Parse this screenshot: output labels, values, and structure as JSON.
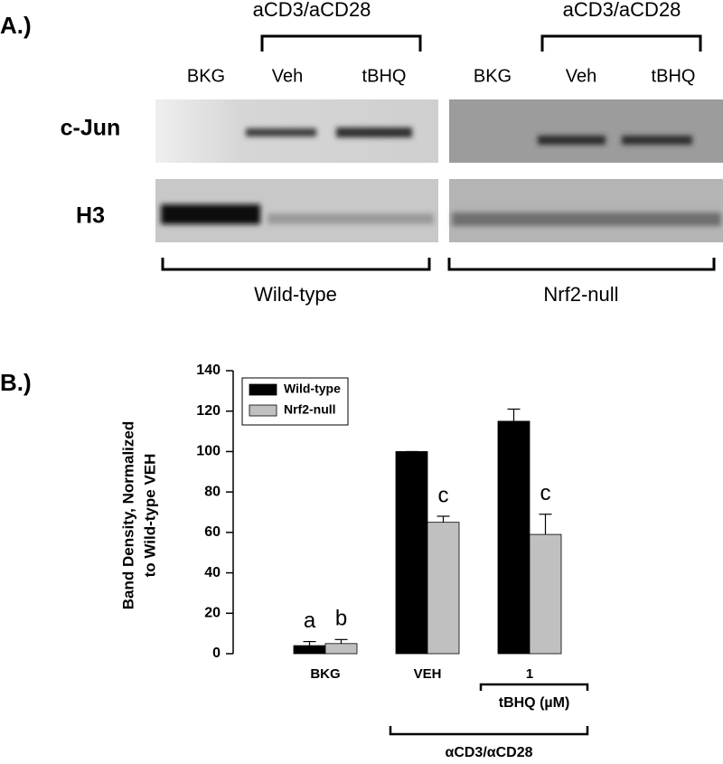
{
  "panel_labels": [
    "A.)",
    "B.)"
  ],
  "blot": {
    "group_labels": [
      "aCD3/aCD28",
      "aCD3/aCD28"
    ],
    "lanes": [
      [
        "BKG",
        "Veh",
        "tBHQ"
      ],
      [
        "BKG",
        "Veh",
        "tBHQ"
      ]
    ],
    "rows": [
      "c-Jun",
      "H3"
    ],
    "genotypes": [
      "Wild-type",
      "Nrf2-null"
    ]
  },
  "chart_data": {
    "type": "bar",
    "ylabel": [
      "Band Density, Normalized",
      "to Wild-type VEH"
    ],
    "categories": [
      "BKG",
      "VEH",
      "1"
    ],
    "groups": [
      {
        "label": "tBHQ (µM)"
      },
      {
        "label": "αCD3/αCD28"
      }
    ],
    "series": [
      {
        "name": "Wild-type",
        "color": "#000000",
        "values": [
          4,
          100,
          115
        ],
        "errors": [
          2,
          0,
          6
        ],
        "letters": [
          "a",
          null,
          null
        ]
      },
      {
        "name": "Nrf2-null",
        "color": "#c0c0c0",
        "values": [
          5,
          65,
          59
        ],
        "errors": [
          2,
          3,
          10
        ],
        "letters": [
          "b",
          "c",
          "c"
        ]
      }
    ],
    "ylim": [
      0,
      140
    ],
    "yticks": [
      0,
      20,
      40,
      60,
      80,
      100,
      120,
      140
    ],
    "legend": "upper left"
  }
}
